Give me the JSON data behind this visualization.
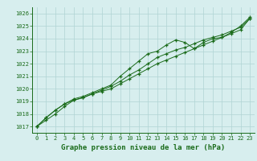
{
  "title": "Graphe pression niveau de la mer (hPa)",
  "x_values": [
    0,
    1,
    2,
    3,
    4,
    5,
    6,
    7,
    8,
    9,
    10,
    11,
    12,
    13,
    14,
    15,
    16,
    17,
    18,
    19,
    20,
    21,
    22,
    23
  ],
  "line1": [
    1017.0,
    1017.7,
    1018.3,
    1018.8,
    1019.2,
    1019.4,
    1019.7,
    1020.0,
    1020.3,
    1021.0,
    1021.6,
    1022.2,
    1022.8,
    1023.0,
    1023.5,
    1023.9,
    1023.7,
    1023.2,
    1023.7,
    1024.0,
    1024.1,
    1024.5,
    1025.0,
    1025.7
  ],
  "line2": [
    1017.0,
    1017.7,
    1018.3,
    1018.8,
    1019.1,
    1019.3,
    1019.6,
    1019.9,
    1020.2,
    1020.6,
    1021.1,
    1021.5,
    1022.0,
    1022.5,
    1022.8,
    1023.1,
    1023.3,
    1023.6,
    1023.9,
    1024.1,
    1024.3,
    1024.6,
    1024.9,
    1025.6
  ],
  "line3": [
    1017.0,
    1017.5,
    1018.0,
    1018.6,
    1019.1,
    1019.3,
    1019.6,
    1019.8,
    1020.0,
    1020.4,
    1020.8,
    1021.2,
    1021.6,
    1022.0,
    1022.3,
    1022.6,
    1022.9,
    1023.2,
    1023.5,
    1023.8,
    1024.1,
    1024.4,
    1024.7,
    1025.6
  ],
  "line_color": "#1a6b1a",
  "bg_color": "#d7eeee",
  "grid_color": "#b0d4d4",
  "text_color": "#1a6b1a",
  "ylim": [
    1016.5,
    1026.5
  ],
  "yticks": [
    1017,
    1018,
    1019,
    1020,
    1021,
    1022,
    1023,
    1024,
    1025,
    1026
  ],
  "marker": "+"
}
